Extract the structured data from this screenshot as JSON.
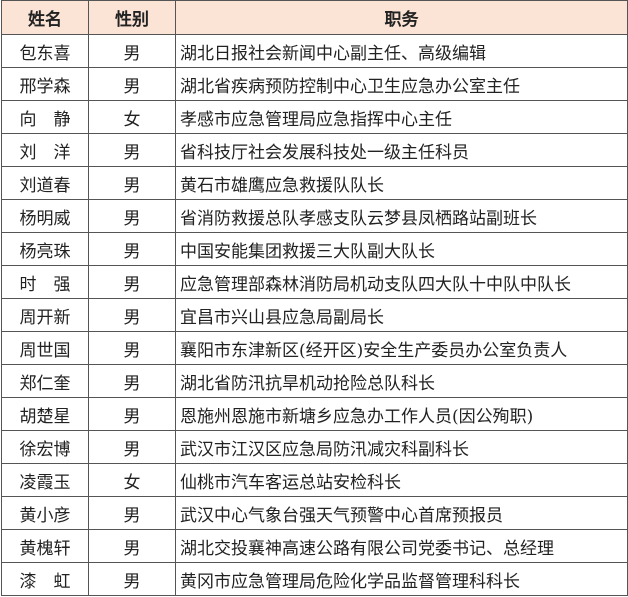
{
  "header": {
    "name": "姓名",
    "gender": "性别",
    "title": "职务",
    "bg_color": "#fbe4d5"
  },
  "rows": [
    {
      "name": "包东喜",
      "gender": "男",
      "title": "湖北日报社会新闻中心副主任、高级编辑"
    },
    {
      "name": "邢学森",
      "gender": "男",
      "title": "湖北省疾病预防控制中心卫生应急办公室主任"
    },
    {
      "name": "向　静",
      "gender": "女",
      "title": "孝感市应急管理局应急指挥中心主任"
    },
    {
      "name": "刘　洋",
      "gender": "男",
      "title": "省科技厅社会发展科技处一级主任科员"
    },
    {
      "name": "刘道春",
      "gender": "男",
      "title": "黄石市雄鹰应急救援队队长"
    },
    {
      "name": "杨明威",
      "gender": "男",
      "title": "省消防救援总队孝感支队云梦县凤栖路站副班长"
    },
    {
      "name": "杨亮珠",
      "gender": "男",
      "title": "中国安能集团救援三大队副大队长"
    },
    {
      "name": "时　强",
      "gender": "男",
      "title": "应急管理部森林消防局机动支队四大队十中队中队长"
    },
    {
      "name": "周开新",
      "gender": "男",
      "title": "宜昌市兴山县应急局副局长"
    },
    {
      "name": "周世国",
      "gender": "男",
      "title": "襄阳市东津新区(经开区)安全生产委员办公室负责人"
    },
    {
      "name": "郑仁奎",
      "gender": "男",
      "title": "湖北省防汛抗旱机动抢险总队科长"
    },
    {
      "name": "胡楚星",
      "gender": "男",
      "title": "恩施州恩施市新塘乡应急办工作人员(因公殉职)"
    },
    {
      "name": "徐宏博",
      "gender": "男",
      "title": "武汉市江汉区应急局防汛减灾科副科长"
    },
    {
      "name": "凌霞玉",
      "gender": "女",
      "title": "仙桃市汽车客运总站安检科长"
    },
    {
      "name": "黄小彦",
      "gender": "男",
      "title": "武汉中心气象台强天气预警中心首席预报员"
    },
    {
      "name": "黄槐轩",
      "gender": "男",
      "title": "湖北交投襄神高速公路有限公司党委书记、总经理"
    },
    {
      "name": "漆　虹",
      "gender": "男",
      "title": "黄冈市应急管理局危险化学品监督管理科科长"
    }
  ]
}
